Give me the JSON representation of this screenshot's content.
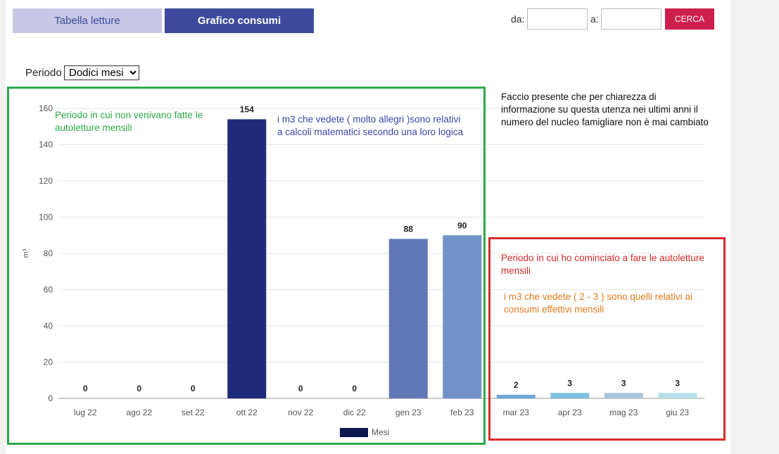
{
  "tabs": {
    "letture": "Tabella letture",
    "grafico": "Grafico consumi"
  },
  "search": {
    "from_label": "da:",
    "to_label": "a:",
    "from_value": "",
    "to_value": "",
    "button": "CERCA"
  },
  "periodo": {
    "label": "Periodo",
    "selected": "Dodici mesi"
  },
  "colors": {
    "accent": "#3d4a9c",
    "button": "#cc1f4e",
    "green_box": "#2daa4a",
    "red_box": "#d52b2b"
  },
  "chart_data": {
    "type": "bar",
    "ylabel": "m³",
    "ylim": [
      0,
      160
    ],
    "yticks": [
      0,
      20,
      40,
      60,
      80,
      100,
      120,
      140,
      160
    ],
    "grid": true,
    "legend": {
      "label": "Mesi",
      "position": "bottom"
    },
    "categories": [
      "lug 22",
      "ago 22",
      "set 22",
      "ott 22",
      "nov 22",
      "dic 22",
      "gen 23",
      "feb 23",
      "mar 23",
      "apr 23",
      "mag 23",
      "giu 23"
    ],
    "values": [
      0,
      0,
      0,
      154,
      0,
      0,
      88,
      90,
      2,
      3,
      3,
      3
    ],
    "bar_colors": [
      "#1f2a7a",
      "#1f2a7a",
      "#1f2a7a",
      "#1f2a7a",
      "#1f2a7a",
      "#1f2a7a",
      "#6277b8",
      "#7192c8",
      "#6fa7d6",
      "#7ec0e0",
      "#a6c4dc",
      "#b6dfe9"
    ],
    "legend_color": "#0f1550"
  },
  "annotations": {
    "green": "Periodo in cui non venivano fatte le autoletture mensili",
    "blue": "i m3 che vedete ( molto allegri )sono relativi a calcoli matematici secondo una loro logica",
    "black": "Faccio presente che per chiarezza di informazione su questa utenza nei ultimi anni il numero del nucleo famigliare non è mai cambiato",
    "red": "Periodo in cui ho cominciato a fare le autoletture mensili",
    "orange": "i m3 che vedete ( 2 - 3 ) sono quelli relativi ai consumi effettivi mensili"
  }
}
